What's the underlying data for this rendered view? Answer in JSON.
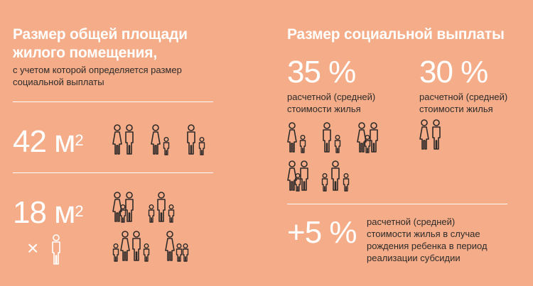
{
  "left": {
    "title_line1": "Размер общей площади",
    "title_line2": "жилого помещения,",
    "subtitle_line1": "с учетом которой определяется размер",
    "subtitle_line2": "социальной выплаты",
    "area1": "42 м",
    "area1_sup": "2",
    "area2": "18 м",
    "area2_sup": "2",
    "multiplier": "×"
  },
  "right": {
    "title": "Размер социальной выплаты",
    "pct1": "35 %",
    "pct1_label_line1": "расчетной (средней)",
    "pct1_label_line2": "стоимости жилья",
    "pct2": "30 %",
    "pct2_label_line1": "расчетной (средней)",
    "pct2_label_line2": "стоимости жилья",
    "pct3": "+5 %",
    "pct3_label_line1": "расчетной (средней)",
    "pct3_label_line2": "стоимости жилья в случае",
    "pct3_label_line3": "рождения ребенка в период",
    "pct3_label_line4": "реализации субсидии"
  },
  "colors": {
    "background": "#f4ad88",
    "text": "#2e2a2a",
    "accent": "#ffffff"
  },
  "icons": [
    "family-couple-icon",
    "family-woman-child-icon",
    "family-man-child-icon",
    "family-couple-child-icon",
    "family-couple-two-children-icon",
    "person-icon"
  ]
}
